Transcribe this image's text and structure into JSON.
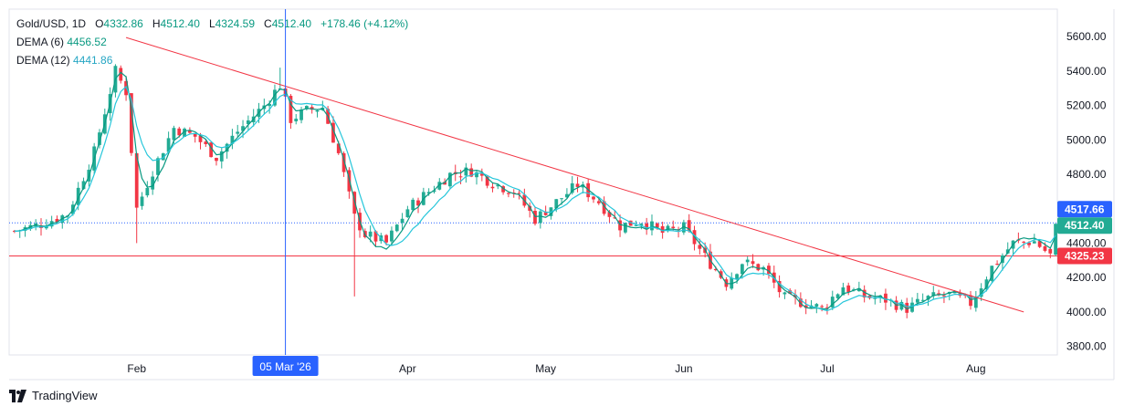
{
  "legend": {
    "symbol": "Gold/USD",
    "interval": "1D",
    "open_label": "O",
    "open": "4332.86",
    "high_label": "H",
    "high": "4512.40",
    "low_label": "L",
    "low": "4324.59",
    "close_label": "C",
    "close": "4512.40",
    "change": "+178.46 (+4.12%)",
    "dema6_label": "DEMA (6)",
    "dema6_value": "4456.52",
    "dema12_label": "DEMA (12)",
    "dema12_value": "4441.86"
  },
  "branding": {
    "name": "TradingView"
  },
  "chart_data": {
    "type": "candlestick",
    "y_range": [
      3750,
      5760
    ],
    "y_ticks": [
      {
        "value": 3800,
        "label": "3800.00"
      },
      {
        "value": 4000,
        "label": "4000.00"
      },
      {
        "value": 4200,
        "label": "4200.00"
      },
      {
        "value": 4400,
        "label": "4400.00"
      },
      {
        "value": 4800,
        "label": "4800.00"
      },
      {
        "value": 5000,
        "label": "5000.00"
      },
      {
        "value": 5200,
        "label": "5200.00"
      },
      {
        "value": 5400,
        "label": "5400.00"
      },
      {
        "value": 5600,
        "label": "5600.00"
      }
    ],
    "x_ticks": [
      {
        "index": 23,
        "label": "Feb"
      },
      {
        "index": 74,
        "label": "Apr"
      },
      {
        "index": 100,
        "label": "May"
      },
      {
        "index": 126,
        "label": "Jun"
      },
      {
        "index": 153,
        "label": "Jul"
      },
      {
        "index": 181,
        "label": "Aug"
      }
    ],
    "crosshair": {
      "index": 51,
      "label": "05 Mar '26"
    },
    "price_labels": [
      {
        "value": 4517.66,
        "label": "4517.66",
        "color": "#2962ff"
      },
      {
        "value": 4512.4,
        "label": "4512.40",
        "color": "#22ab94"
      },
      {
        "value": 4325.23,
        "label": "4325.23",
        "color": "#f23645"
      }
    ],
    "horizontal_lines": [
      {
        "value": 4517.66,
        "color": "#2962ff",
        "style": "dotted"
      },
      {
        "value": 4325.23,
        "color": "#f23645",
        "style": "solid"
      }
    ],
    "trendline": {
      "from": {
        "index": 21,
        "value": 5595
      },
      "to": {
        "index": 190,
        "value": 4000
      },
      "color": "#f23645"
    },
    "key_points": [
      [
        0,
        4470
      ],
      [
        5,
        4510
      ],
      [
        10,
        4570
      ],
      [
        15,
        4930
      ],
      [
        19,
        5400
      ],
      [
        21,
        5280
      ],
      [
        23,
        4600
      ],
      [
        26,
        4820
      ],
      [
        30,
        5070
      ],
      [
        34,
        5020
      ],
      [
        38,
        4900
      ],
      [
        42,
        5050
      ],
      [
        47,
        5200
      ],
      [
        50,
        5320
      ],
      [
        52,
        5120
      ],
      [
        55,
        5170
      ],
      [
        58,
        5190
      ],
      [
        61,
        4920
      ],
      [
        64,
        4550
      ],
      [
        66,
        4450
      ],
      [
        70,
        4400
      ],
      [
        74,
        4600
      ],
      [
        78,
        4700
      ],
      [
        82,
        4800
      ],
      [
        86,
        4820
      ],
      [
        90,
        4750
      ],
      [
        94,
        4700
      ],
      [
        98,
        4540
      ],
      [
        102,
        4640
      ],
      [
        106,
        4740
      ],
      [
        110,
        4640
      ],
      [
        114,
        4500
      ],
      [
        118,
        4530
      ],
      [
        122,
        4460
      ],
      [
        126,
        4490
      ],
      [
        130,
        4320
      ],
      [
        134,
        4170
      ],
      [
        137,
        4290
      ],
      [
        141,
        4250
      ],
      [
        145,
        4080
      ],
      [
        149,
        4050
      ],
      [
        152,
        4020
      ],
      [
        156,
        4150
      ],
      [
        160,
        4090
      ],
      [
        164,
        4070
      ],
      [
        168,
        4020
      ],
      [
        172,
        4080
      ],
      [
        176,
        4100
      ],
      [
        180,
        4050
      ],
      [
        184,
        4260
      ],
      [
        188,
        4400
      ],
      [
        192,
        4410
      ],
      [
        195,
        4330
      ],
      [
        196,
        4512
      ]
    ],
    "dema6_offset": 25,
    "dema12_offset": 45,
    "dema6_color": "#089981",
    "dema12_color": "#26c6da",
    "up_color": "#22ab94",
    "down_color": "#f23645"
  }
}
